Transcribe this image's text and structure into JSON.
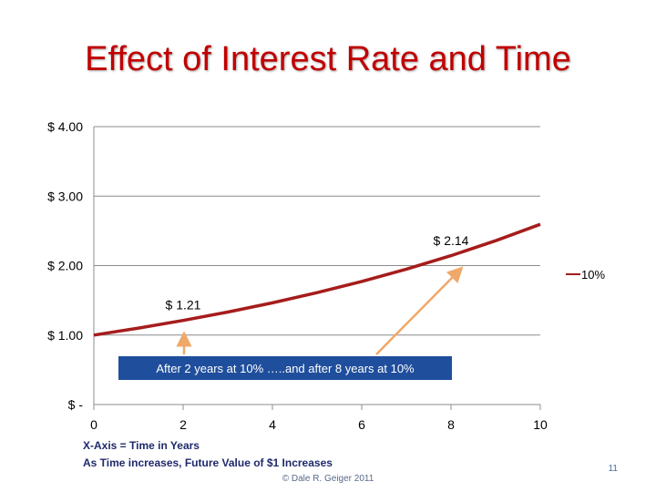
{
  "slide": {
    "title": "Effect of Interest Rate and Time",
    "notes": [
      "X-Axis = Time in Years",
      "As Time increases, Future Value of $1 Increases"
    ],
    "copyright": "© Dale R. Geiger 2011",
    "page_number": "11"
  },
  "colors": {
    "title": "#c00000",
    "series": "#a61c1c",
    "arrow": "#f0a868",
    "callout_bg": "#1f4e9c",
    "notes": "#1f2a6b"
  },
  "chart_data": {
    "type": "line",
    "title": "",
    "xlabel": "",
    "ylabel": "",
    "xlim": [
      0,
      10
    ],
    "ylim": [
      0,
      4
    ],
    "x_ticks": [
      "0",
      "2",
      "4",
      "6",
      "8",
      "10"
    ],
    "y_ticks": [
      "$ -",
      "$ 1.00",
      "$ 2.00",
      "$ 3.00",
      "$ 4.00"
    ],
    "grid": true,
    "legend_position": "right",
    "series": [
      {
        "name": "10%",
        "x": [
          0,
          1,
          2,
          3,
          4,
          5,
          6,
          7,
          8,
          9,
          10
        ],
        "values": [
          1.0,
          1.1,
          1.21,
          1.331,
          1.4641,
          1.6105,
          1.7716,
          1.9487,
          2.1436,
          2.3579,
          2.5937
        ]
      }
    ],
    "annotations": [
      {
        "text": "$ 1.21",
        "x": 2,
        "y": 1.21
      },
      {
        "text": "$ 2.14",
        "x": 8,
        "y": 2.14
      }
    ],
    "callout": "After 2 years at 10% …..and after 8 years at 10%"
  }
}
